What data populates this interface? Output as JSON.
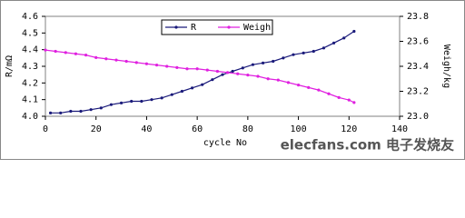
{
  "chart_data": {
    "type": "line",
    "xlabel": "cycle No",
    "ylabel": "R/mΩ",
    "y2label": "Weigh/kg",
    "xlim": [
      0,
      140
    ],
    "xticks": [
      0,
      20,
      40,
      60,
      80,
      100,
      120,
      140
    ],
    "ylim": [
      4.0,
      4.6
    ],
    "yticks": [
      {
        "value": 4.0,
        "label": "4.0"
      },
      4.1,
      4.2,
      4.3,
      4.4,
      4.5,
      4.6
    ],
    "y2lim": [
      23.0,
      23.8
    ],
    "y2ticks": [
      {
        "value": 23.0,
        "label": "23.0"
      },
      23.2,
      23.4,
      23.6,
      23.8
    ],
    "legend": "top",
    "annotation": "elecfans.com 电子发烧友",
    "series": [
      {
        "name": "R",
        "color": "#1a1a7a",
        "x": [
          2,
          6,
          10,
          14,
          18,
          22,
          26,
          30,
          34,
          38,
          42,
          46,
          50,
          54,
          58,
          62,
          66,
          70,
          74,
          78,
          82,
          86,
          90,
          94,
          98,
          102,
          106,
          110,
          114,
          118,
          122
        ],
        "values": [
          4.02,
          4.02,
          4.03,
          4.03,
          4.04,
          4.05,
          4.07,
          4.08,
          4.09,
          4.09,
          4.1,
          4.11,
          4.13,
          4.15,
          4.17,
          4.19,
          4.22,
          4.25,
          4.27,
          4.29,
          4.31,
          4.32,
          4.33,
          4.35,
          4.37,
          4.38,
          4.39,
          4.41,
          4.44,
          4.47,
          4.51
        ]
      },
      {
        "name": "Weigh",
        "color": "#e020e0",
        "axis": "y2",
        "x": [
          0,
          4,
          8,
          12,
          16,
          20,
          24,
          28,
          32,
          36,
          40,
          44,
          48,
          52,
          56,
          60,
          64,
          68,
          72,
          76,
          80,
          84,
          88,
          92,
          96,
          100,
          104,
          108,
          112,
          116,
          120,
          122
        ],
        "values": [
          23.53,
          23.52,
          23.51,
          23.5,
          23.49,
          23.47,
          23.46,
          23.45,
          23.44,
          23.43,
          23.42,
          23.41,
          23.4,
          23.39,
          23.38,
          23.38,
          23.37,
          23.36,
          23.35,
          23.34,
          23.33,
          23.32,
          23.3,
          23.29,
          23.27,
          23.25,
          23.23,
          23.21,
          23.18,
          23.15,
          23.13,
          23.11
        ]
      }
    ]
  }
}
